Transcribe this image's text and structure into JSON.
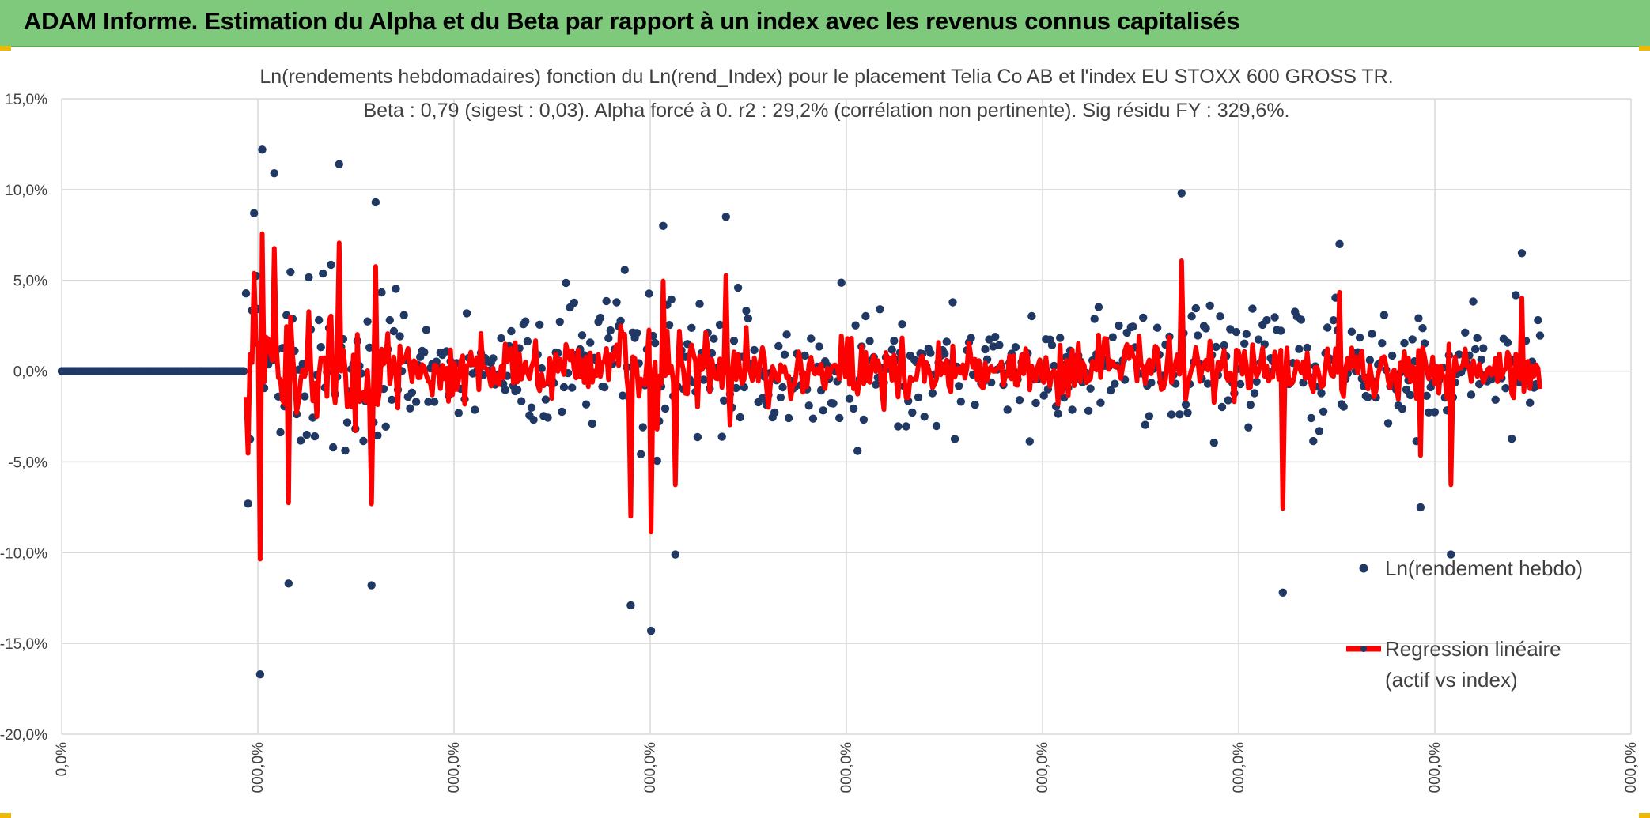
{
  "header": {
    "title": "ADAM Informe. Estimation du Alpha et du Beta par rapport à un index avec les revenus connus capitalisés"
  },
  "colors": {
    "banner": "#7ec97c",
    "points": "#1f3864",
    "regression": "#ff0000",
    "grid": "#d9d9d9"
  },
  "chart_data": {
    "type": "scatter",
    "title_line1": "Ln(rendements hebdomadaires) fonction du Ln(rend_Index) pour le placement Telia Co AB et l'index EU STOXX 600 GROSS TR.",
    "title_line2": "Beta : 0,79 (sigest : 0,03). Alpha forcé à 0. r2 : 29,2% (corrélation non pertinente). Sig résidu FY : 329,6%.",
    "beta": 0.79,
    "alpha": 0,
    "ylim": [
      -20,
      15
    ],
    "y_ticks": [
      "15,0%",
      "10,0%",
      "5,0%",
      "0,0%",
      "-5,0%",
      "-10,0%",
      "-15,0%",
      "-20,0%"
    ],
    "x_ticks": [
      "0,0%",
      "000,0%",
      "000,0%",
      "000,0%",
      "000,0%",
      "000,0%",
      "000,0%",
      "000,0%",
      "000,0%"
    ],
    "grid": true,
    "legend_position": "right",
    "series": [
      {
        "name": "Ln(rendement hebdo)",
        "kind": "points"
      },
      {
        "name": "Regression linéaire (actif vs index)",
        "kind": "line"
      }
    ],
    "legend": {
      "points_label": "Ln(rendement hebdo)",
      "line_label_1": "Regression linéaire",
      "line_label_2": "(actif vs index)"
    },
    "leading_zero_count": 92,
    "extreme_points_pct": [
      [
        1,
        -7.3
      ],
      [
        4,
        8.7
      ],
      [
        7,
        -16.7
      ],
      [
        8,
        12.2
      ],
      [
        14,
        10.9
      ],
      [
        21,
        -11.7
      ],
      [
        46,
        11.4
      ],
      [
        62,
        -11.8
      ],
      [
        64,
        9.3
      ],
      [
        190,
        -12.9
      ],
      [
        200,
        -14.3
      ],
      [
        206,
        8.0
      ],
      [
        212,
        -10.1
      ],
      [
        237,
        8.5
      ],
      [
        462,
        9.8
      ],
      [
        512,
        -12.2
      ],
      [
        540,
        7.0
      ],
      [
        580,
        -7.5
      ],
      [
        595,
        -10.1
      ],
      [
        630,
        6.5
      ]
    ]
  }
}
